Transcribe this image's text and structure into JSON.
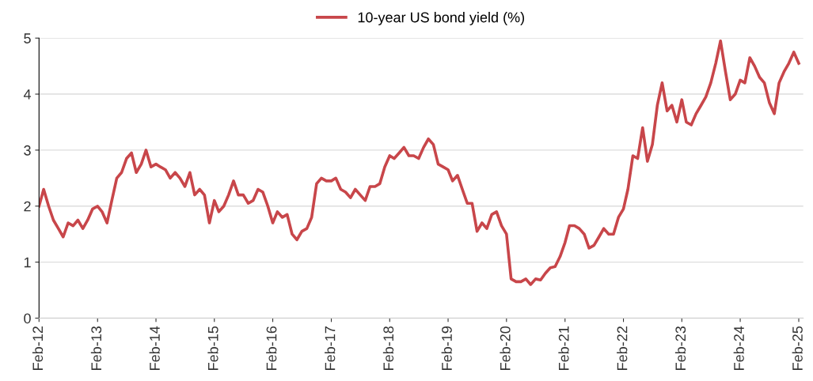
{
  "chart_data": {
    "type": "line",
    "x": [
      "2012-02",
      "2012-03",
      "2012-04",
      "2012-05",
      "2012-06",
      "2012-07",
      "2012-08",
      "2012-09",
      "2012-10",
      "2012-11",
      "2012-12",
      "2013-01",
      "2013-02",
      "2013-03",
      "2013-04",
      "2013-05",
      "2013-06",
      "2013-07",
      "2013-08",
      "2013-09",
      "2013-10",
      "2013-11",
      "2013-12",
      "2014-01",
      "2014-02",
      "2014-03",
      "2014-04",
      "2014-05",
      "2014-06",
      "2014-07",
      "2014-08",
      "2014-09",
      "2014-10",
      "2014-11",
      "2014-12",
      "2015-01",
      "2015-02",
      "2015-03",
      "2015-04",
      "2015-05",
      "2015-06",
      "2015-07",
      "2015-08",
      "2015-09",
      "2015-10",
      "2015-11",
      "2015-12",
      "2016-01",
      "2016-02",
      "2016-03",
      "2016-04",
      "2016-05",
      "2016-06",
      "2016-07",
      "2016-08",
      "2016-09",
      "2016-10",
      "2016-11",
      "2016-12",
      "2017-01",
      "2017-02",
      "2017-03",
      "2017-04",
      "2017-05",
      "2017-06",
      "2017-07",
      "2017-08",
      "2017-09",
      "2017-10",
      "2017-11",
      "2017-12",
      "2018-01",
      "2018-02",
      "2018-03",
      "2018-04",
      "2018-05",
      "2018-06",
      "2018-07",
      "2018-08",
      "2018-09",
      "2018-10",
      "2018-11",
      "2018-12",
      "2019-01",
      "2019-02",
      "2019-03",
      "2019-04",
      "2019-05",
      "2019-06",
      "2019-07",
      "2019-08",
      "2019-09",
      "2019-10",
      "2019-11",
      "2019-12",
      "2020-01",
      "2020-02",
      "2020-03",
      "2020-04",
      "2020-05",
      "2020-06",
      "2020-07",
      "2020-08",
      "2020-09",
      "2020-10",
      "2020-11",
      "2020-12",
      "2021-01",
      "2021-02",
      "2021-03",
      "2021-04",
      "2021-05",
      "2021-06",
      "2021-07",
      "2021-08",
      "2021-09",
      "2021-10",
      "2021-11",
      "2021-12",
      "2022-01",
      "2022-02",
      "2022-03",
      "2022-04",
      "2022-05",
      "2022-06",
      "2022-07",
      "2022-08",
      "2022-09",
      "2022-10",
      "2022-11",
      "2022-12",
      "2023-01",
      "2023-02",
      "2023-03",
      "2023-04",
      "2023-05",
      "2023-06",
      "2023-07",
      "2023-08",
      "2023-09",
      "2023-10",
      "2023-11",
      "2023-12",
      "2024-01",
      "2024-02",
      "2024-03",
      "2024-04",
      "2024-05",
      "2024-06",
      "2024-07",
      "2024-08",
      "2024-09",
      "2024-10",
      "2024-11",
      "2024-12",
      "2025-01",
      "2025-02"
    ],
    "series": [
      {
        "name": "10-year US bond yield (%)",
        "color": "#c8464a",
        "values": [
          2.0,
          2.3,
          2.0,
          1.75,
          1.6,
          1.45,
          1.7,
          1.65,
          1.75,
          1.6,
          1.75,
          1.95,
          2.0,
          1.9,
          1.7,
          2.1,
          2.5,
          2.6,
          2.85,
          2.95,
          2.6,
          2.75,
          3.0,
          2.7,
          2.75,
          2.7,
          2.65,
          2.5,
          2.6,
          2.5,
          2.35,
          2.6,
          2.2,
          2.3,
          2.2,
          1.7,
          2.1,
          1.9,
          2.0,
          2.2,
          2.45,
          2.2,
          2.2,
          2.05,
          2.1,
          2.3,
          2.25,
          2.0,
          1.7,
          1.9,
          1.8,
          1.85,
          1.5,
          1.4,
          1.55,
          1.6,
          1.8,
          2.4,
          2.5,
          2.45,
          2.45,
          2.5,
          2.3,
          2.25,
          2.15,
          2.3,
          2.2,
          2.1,
          2.35,
          2.35,
          2.4,
          2.7,
          2.9,
          2.85,
          2.95,
          3.05,
          2.9,
          2.9,
          2.85,
          3.05,
          3.2,
          3.1,
          2.75,
          2.7,
          2.65,
          2.45,
          2.55,
          2.3,
          2.05,
          2.05,
          1.55,
          1.7,
          1.6,
          1.85,
          1.9,
          1.65,
          1.5,
          0.7,
          0.65,
          0.65,
          0.7,
          0.6,
          0.7,
          0.68,
          0.8,
          0.9,
          0.92,
          1.1,
          1.35,
          1.65,
          1.65,
          1.6,
          1.5,
          1.25,
          1.3,
          1.45,
          1.6,
          1.5,
          1.5,
          1.8,
          1.95,
          2.3,
          2.9,
          2.85,
          3.4,
          2.8,
          3.1,
          3.8,
          4.2,
          3.7,
          3.8,
          3.5,
          3.9,
          3.5,
          3.45,
          3.65,
          3.8,
          3.95,
          4.2,
          4.55,
          4.95,
          4.4,
          3.9,
          4.0,
          4.25,
          4.2,
          4.65,
          4.5,
          4.3,
          4.2,
          3.85,
          3.65,
          4.2,
          4.4,
          4.55,
          4.75,
          4.55
        ]
      }
    ],
    "xlim": [
      "2012-02",
      "2025-03"
    ],
    "xticks": [
      {
        "value": "2012-02",
        "label": "Feb-12"
      },
      {
        "value": "2013-02",
        "label": "Feb-13"
      },
      {
        "value": "2014-02",
        "label": "Feb-14"
      },
      {
        "value": "2015-02",
        "label": "Feb-15"
      },
      {
        "value": "2016-02",
        "label": "Feb-16"
      },
      {
        "value": "2017-02",
        "label": "Feb-17"
      },
      {
        "value": "2018-02",
        "label": "Feb-18"
      },
      {
        "value": "2019-02",
        "label": "Feb-19"
      },
      {
        "value": "2020-02",
        "label": "Feb-20"
      },
      {
        "value": "2021-02",
        "label": "Feb-21"
      },
      {
        "value": "2022-02",
        "label": "Feb-22"
      },
      {
        "value": "2023-02",
        "label": "Feb-23"
      },
      {
        "value": "2024-02",
        "label": "Feb-24"
      },
      {
        "value": "2025-02",
        "label": "Feb-25"
      }
    ],
    "ylim": [
      0,
      5
    ],
    "yticks": [
      0,
      1,
      2,
      3,
      4,
      5
    ],
    "grid": "y",
    "legend": "top"
  }
}
